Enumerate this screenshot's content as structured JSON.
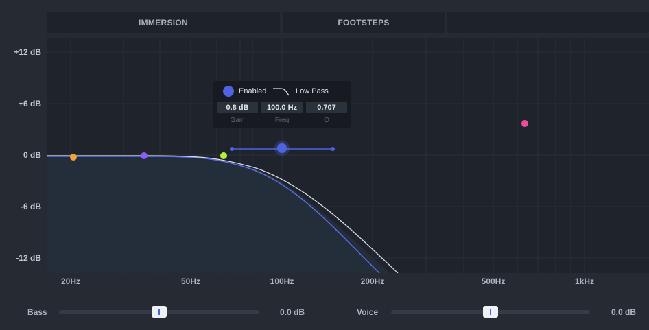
{
  "tabs": [
    "IMMERSION",
    "FOOTSTEPS",
    ""
  ],
  "y_axis": [
    "+12 dB",
    "+6 dB",
    "0 dB",
    "-6 dB",
    "-12 dB"
  ],
  "x_axis": [
    "20Hz",
    "50Hz",
    "100Hz",
    "200Hz",
    "500Hz",
    "1kHz"
  ],
  "filter_popup": {
    "enabled_label": "Enabled",
    "type_label": "Low Pass",
    "gain": "0.8 dB",
    "freq": "100.0 Hz",
    "q": "0.707",
    "gain_label": "Gain",
    "freq_label": "Freq",
    "q_label": "Q"
  },
  "eq_points": [
    {
      "freq": 20,
      "gain": 0,
      "color": "#f5a43a"
    },
    {
      "freq": 32,
      "gain": 0,
      "color": "#8b5cf6"
    },
    {
      "freq": 64,
      "gain": 0,
      "color": "#b7f03a"
    },
    {
      "freq": 100,
      "gain": 0.8,
      "color": "#4f63e0"
    },
    {
      "freq": 640,
      "gain": 3.7,
      "color": "#ec4d9a"
    }
  ],
  "sliders": {
    "bass": {
      "label": "Bass",
      "value": "0.0 dB",
      "level": 0.5
    },
    "voice": {
      "label": "Voice",
      "value": "0.0 dB",
      "level": 0.5
    }
  },
  "colors": {
    "accent": "#4f63e0",
    "curve_white": "#d9dde2",
    "curve_blue": "#5a6fe6"
  }
}
